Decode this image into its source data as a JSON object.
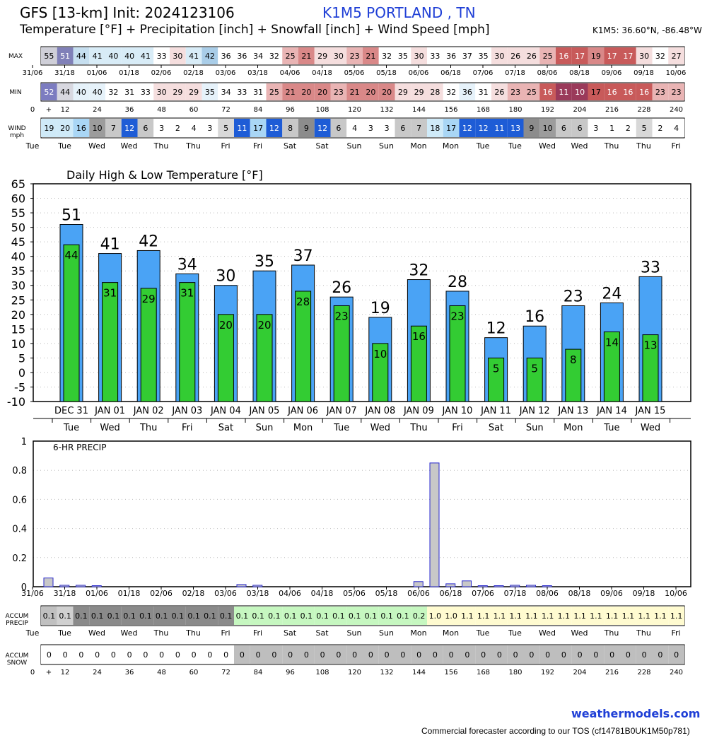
{
  "header": {
    "title": "GFS [13-km] Init: 2024123106",
    "station": "K1M5 PORTLAND      , TN",
    "subtitle": "Temperature [°F] + Precipitation [inch] + Snowfall [inch] + Wind Speed [mph]",
    "coords": "K1M5: 36.60°N, -86.48°W"
  },
  "strip": {
    "max_label": "MAX",
    "min_label": "MIN",
    "wind_label": [
      "WIND",
      "mph"
    ],
    "accum_precip_label": [
      "ACCUM",
      "PRECIP"
    ],
    "accum_snow_label": [
      "ACCUM",
      "SNOW"
    ],
    "max_values": [
      55,
      51,
      44,
      41,
      40,
      40,
      41,
      33,
      30,
      41,
      42,
      36,
      36,
      34,
      32,
      25,
      21,
      29,
      30,
      23,
      21,
      32,
      35,
      30,
      33,
      36,
      37,
      35,
      30,
      26,
      26,
      25,
      16,
      17,
      19,
      17,
      17,
      30,
      32,
      27
    ],
    "min_values": [
      52,
      44,
      40,
      40,
      32,
      31,
      33,
      30,
      29,
      29,
      35,
      34,
      33,
      31,
      25,
      21,
      20,
      20,
      23,
      21,
      20,
      20,
      29,
      29,
      28,
      32,
      36,
      31,
      26,
      23,
      25,
      16,
      11,
      10,
      17,
      16,
      16,
      16,
      23,
      23
    ],
    "wind_values": [
      19,
      20,
      16,
      10,
      7,
      12,
      6,
      3,
      2,
      4,
      3,
      5,
      11,
      17,
      12,
      8,
      9,
      12,
      6,
      4,
      3,
      3,
      6,
      7,
      18,
      17,
      12,
      12,
      11,
      13,
      9,
      10,
      6,
      6,
      3,
      1,
      2,
      5,
      2,
      4
    ],
    "accum_precip_values": [
      "0.1",
      "0.1",
      "0.1",
      "0.1",
      "0.1",
      "0.1",
      "0.1",
      "0.1",
      "0.1",
      "0.1",
      "0.1",
      "0.1",
      "0.1",
      "0.1",
      "0.1",
      "0.1",
      "0.1",
      "0.1",
      "0.1",
      "0.1",
      "0.1",
      "0.1",
      "0.1",
      "0.2",
      "1.0",
      "1.0",
      "1.1",
      "1.1",
      "1.1",
      "1.1",
      "1.1",
      "1.1",
      "1.1",
      "1.1",
      "1.1",
      "1.1",
      "1.1",
      "1.1",
      "1.1",
      "1.1"
    ],
    "accum_snow_values": [
      "0",
      "0",
      "0",
      "0",
      "0",
      "0",
      "0",
      "0",
      "0",
      "0",
      "0",
      "0",
      "0",
      "0",
      "0",
      "0",
      "0",
      "0",
      "0",
      "0",
      "0",
      "0",
      "0",
      "0",
      "0",
      "0",
      "0",
      "0",
      "0",
      "0",
      "0",
      "0",
      "0",
      "0",
      "0",
      "0",
      "0",
      "0",
      "0",
      "0"
    ],
    "date_labels": [
      "31/06",
      "31/18",
      "01/06",
      "01/18",
      "02/06",
      "02/18",
      "03/06",
      "03/18",
      "04/06",
      "04/18",
      "05/06",
      "05/18",
      "06/06",
      "06/18",
      "07/06",
      "07/18",
      "08/06",
      "08/18",
      "09/06",
      "09/18",
      "10/06"
    ],
    "hour_labels": [
      "0",
      "+",
      "12",
      "24",
      "36",
      "48",
      "60",
      "72",
      "84",
      "96",
      "108",
      "120",
      "132",
      "144",
      "156",
      "168",
      "180",
      "192",
      "204",
      "216",
      "228",
      "240"
    ],
    "day_labels": [
      "Tue",
      "Tue",
      "Wed",
      "Wed",
      "Thu",
      "Thu",
      "Fri",
      "Fri",
      "Sat",
      "Sat",
      "Sun",
      "Sun",
      "Mon",
      "Mon",
      "Tue",
      "Tue",
      "Wed",
      "Wed",
      "Thu",
      "Thu",
      "Fri"
    ]
  },
  "chart_data": [
    {
      "type": "bar",
      "title": "Daily High & Low Temperature [°F]",
      "categories": [
        "DEC 31",
        "JAN 01",
        "JAN 02",
        "JAN 03",
        "JAN 04",
        "JAN 05",
        "JAN 06",
        "JAN 07",
        "JAN 08",
        "JAN 09",
        "JAN 10",
        "JAN 11",
        "JAN 12",
        "JAN 13",
        "JAN 14",
        "JAN 15"
      ],
      "weekdays": [
        "Tue",
        "Wed",
        "Thu",
        "Fri",
        "Sat",
        "Sun",
        "Mon",
        "Tue",
        "Wed",
        "Thu",
        "Fri",
        "Sat",
        "Sun",
        "Mon",
        "Tue",
        "Wed"
      ],
      "series": [
        {
          "values": [
            51,
            41,
            42,
            34,
            30,
            35,
            37,
            26,
            19,
            32,
            28,
            12,
            16,
            23,
            24,
            33
          ]
        },
        {
          "values": [
            44,
            31,
            29,
            31,
            20,
            20,
            28,
            23,
            10,
            16,
            23,
            5,
            5,
            8,
            14,
            13
          ]
        }
      ],
      "yticks": [
        65,
        60,
        55,
        50,
        45,
        40,
        35,
        30,
        25,
        20,
        15,
        10,
        5,
        0,
        -5,
        -10
      ],
      "ylim": [
        -10,
        65
      ],
      "grid": true,
      "colors": {
        "high": "#4aa3f5",
        "low": "#33cc33"
      }
    },
    {
      "type": "bar",
      "title": "6-HR PRECIP",
      "values": [
        0.06,
        0.01,
        0.01,
        0.005,
        0,
        0,
        0,
        0,
        0,
        0,
        0,
        0,
        0.015,
        0.01,
        0,
        0,
        0,
        0,
        0,
        0,
        0,
        0,
        0,
        0.035,
        0.85,
        0.02,
        0.04,
        0.005,
        0.005,
        0.01,
        0.01,
        0.005,
        0,
        0,
        0,
        0,
        0,
        0,
        0,
        0
      ],
      "yticks": [
        "1",
        "0.8",
        "0.6",
        "0.4",
        "0.2",
        "0"
      ],
      "ylim": [
        0,
        1
      ],
      "grid": true,
      "colors": {
        "bar": "#c8c8c8",
        "edge": "#2a2acc"
      }
    }
  ],
  "footer": {
    "site": "weathermodels.com",
    "tos": "Commercial forecaster according to our TOS (cf14781B0UK1M50p781)"
  }
}
